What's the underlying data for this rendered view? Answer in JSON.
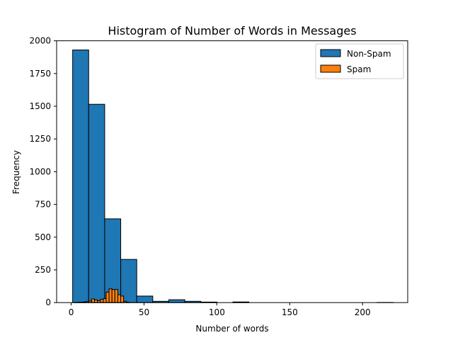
{
  "chart_data": {
    "type": "bar",
    "subtype": "histogram",
    "title": "Histogram of Number of Words in Messages",
    "xlabel": "Number of words",
    "ylabel": "Frequency",
    "xlim": [
      -10,
      231
    ],
    "ylim": [
      0,
      2000
    ],
    "xticks": [
      0,
      50,
      100,
      150,
      200
    ],
    "yticks": [
      0,
      250,
      500,
      750,
      1000,
      1250,
      1500,
      1750,
      2000
    ],
    "legend": {
      "placement": "upper-right"
    },
    "series": [
      {
        "name": "Non-Spam",
        "color": "#1f77b4",
        "bins": [
          {
            "x0": 1,
            "x1": 12,
            "count": 1930
          },
          {
            "x0": 12,
            "x1": 23,
            "count": 1515
          },
          {
            "x0": 23,
            "x1": 34,
            "count": 640
          },
          {
            "x0": 34,
            "x1": 45,
            "count": 330
          },
          {
            "x0": 45,
            "x1": 56,
            "count": 50
          },
          {
            "x0": 56,
            "x1": 67,
            "count": 10
          },
          {
            "x0": 67,
            "x1": 78,
            "count": 22
          },
          {
            "x0": 78,
            "x1": 89,
            "count": 10
          },
          {
            "x0": 89,
            "x1": 100,
            "count": 4
          },
          {
            "x0": 100,
            "x1": 111,
            "count": 0
          },
          {
            "x0": 111,
            "x1": 122,
            "count": 5
          },
          {
            "x0": 122,
            "x1": 133,
            "count": 0
          },
          {
            "x0": 133,
            "x1": 144,
            "count": 0
          },
          {
            "x0": 144,
            "x1": 155,
            "count": 0
          },
          {
            "x0": 155,
            "x1": 166,
            "count": 0
          },
          {
            "x0": 166,
            "x1": 177,
            "count": 0
          },
          {
            "x0": 177,
            "x1": 188,
            "count": 0
          },
          {
            "x0": 188,
            "x1": 199,
            "count": 0
          },
          {
            "x0": 199,
            "x1": 210,
            "count": 0
          },
          {
            "x0": 210,
            "x1": 221,
            "count": 1
          }
        ]
      },
      {
        "name": "Spam",
        "color": "#ff7f0e",
        "bins": [
          {
            "x0": 2,
            "x1": 4,
            "count": 1
          },
          {
            "x0": 4,
            "x1": 6,
            "count": 2
          },
          {
            "x0": 6,
            "x1": 8,
            "count": 3
          },
          {
            "x0": 8,
            "x1": 10,
            "count": 5
          },
          {
            "x0": 10,
            "x1": 12,
            "count": 8
          },
          {
            "x0": 12,
            "x1": 14,
            "count": 12
          },
          {
            "x0": 14,
            "x1": 16,
            "count": 28
          },
          {
            "x0": 16,
            "x1": 18,
            "count": 20
          },
          {
            "x0": 18,
            "x1": 20,
            "count": 15
          },
          {
            "x0": 20,
            "x1": 22,
            "count": 25
          },
          {
            "x0": 22,
            "x1": 24,
            "count": 30
          },
          {
            "x0": 24,
            "x1": 26,
            "count": 80
          },
          {
            "x0": 26,
            "x1": 28,
            "count": 105
          },
          {
            "x0": 28,
            "x1": 30,
            "count": 100
          },
          {
            "x0": 30,
            "x1": 32,
            "count": 100
          },
          {
            "x0": 32,
            "x1": 34,
            "count": 60
          },
          {
            "x0": 34,
            "x1": 36,
            "count": 50
          },
          {
            "x0": 36,
            "x1": 38,
            "count": 10
          },
          {
            "x0": 38,
            "x1": 40,
            "count": 2
          }
        ]
      }
    ]
  }
}
